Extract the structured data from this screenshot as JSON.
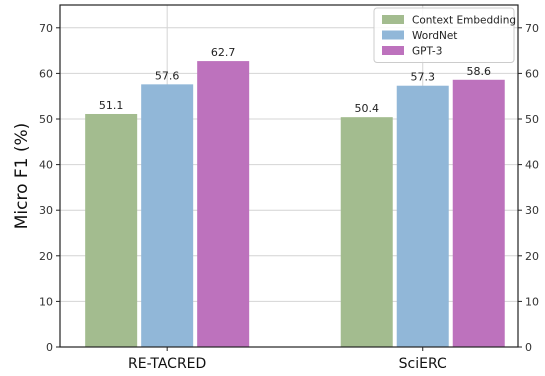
{
  "chart_data": {
    "type": "bar",
    "title": "",
    "xlabel": "",
    "ylabel": "Micro F1 (%)",
    "ylim": [
      0,
      75
    ],
    "yticks": [
      0,
      10,
      20,
      30,
      40,
      50,
      60,
      70
    ],
    "grid": true,
    "legend_position": "top-right",
    "secondary_y_axis": true,
    "categories": [
      "RE-TACRED",
      "SciERC"
    ],
    "series": [
      {
        "name": "Context Embedding",
        "color": "#a3bc8f",
        "values": [
          51.1,
          50.4
        ]
      },
      {
        "name": "WordNet",
        "color": "#91b7d8",
        "values": [
          57.6,
          57.3
        ]
      },
      {
        "name": "GPT-3",
        "color": "#bd72bd",
        "values": [
          62.7,
          58.6
        ]
      }
    ]
  }
}
